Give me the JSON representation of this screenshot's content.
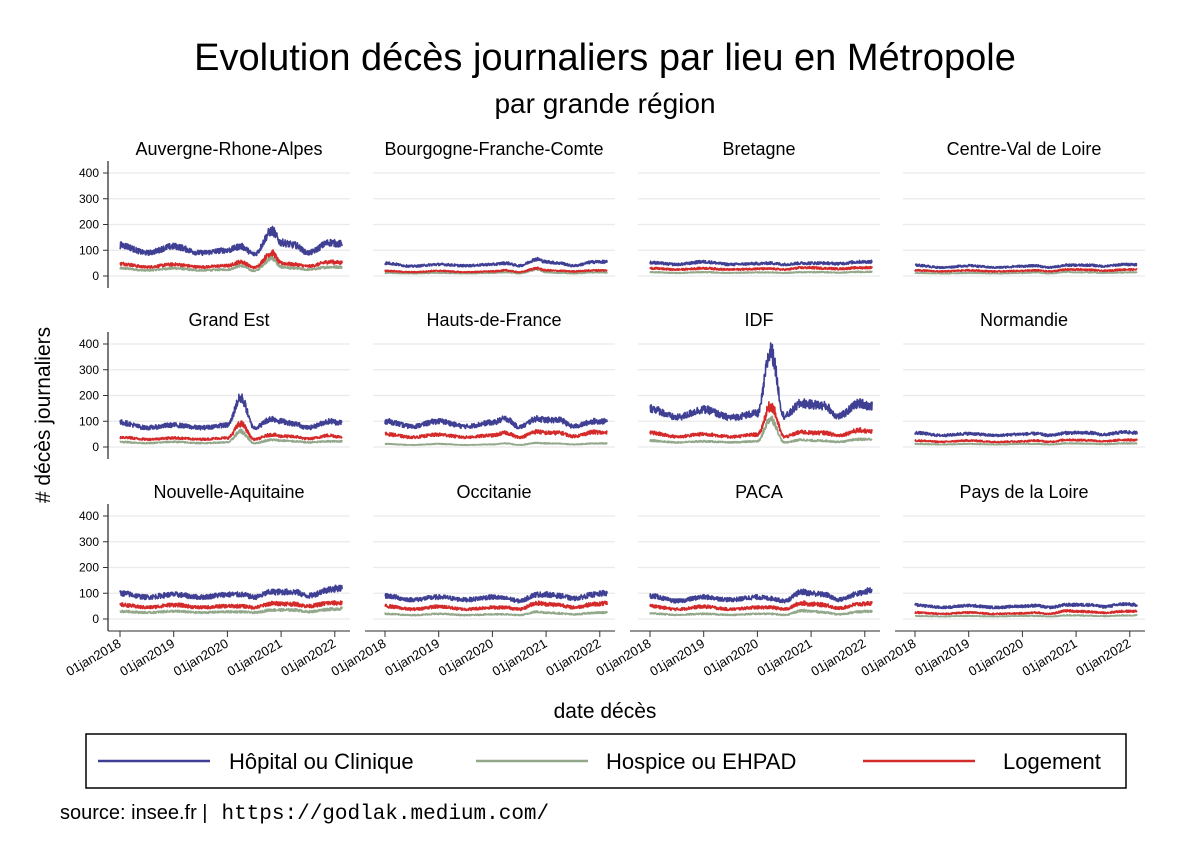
{
  "chart_data": {
    "type": "line",
    "title": "Evolution décès journaliers par lieu en Métropole",
    "subtitle": "par grande région",
    "xlabel": "date décès",
    "ylabel": "# décès journaliers",
    "ylim": [
      0,
      400
    ],
    "yticks": [
      0,
      100,
      200,
      300,
      400
    ],
    "xlim": [
      "2018-01-01",
      "2022-02-20"
    ],
    "xticks": [
      "01jan2018",
      "01jan2019",
      "01jan2020",
      "01jan2021",
      "01jan2022"
    ],
    "grid": true,
    "legend_position": "bottom",
    "series_info": [
      {
        "key": "hopital",
        "name": "Hôpital ou Clinique",
        "color": "#3f3f94"
      },
      {
        "key": "hospice",
        "name": "Hospice ou EHPAD",
        "color": "#93a88b"
      },
      {
        "key": "logement",
        "name": "Logement",
        "color": "#d52a2a"
      }
    ],
    "anchor_dates": [
      "2018-01",
      "2018-07",
      "2019-01",
      "2019-07",
      "2020-01",
      "2020-04",
      "2020-07",
      "2020-11",
      "2021-01",
      "2021-04",
      "2021-07",
      "2021-12",
      "2022-02"
    ],
    "panels": [
      {
        "region": "Auvergne-Rhone-Alpes",
        "series": {
          "hopital": [
            120,
            90,
            115,
            90,
            100,
            115,
            85,
            175,
            130,
            120,
            90,
            130,
            125
          ],
          "hospice": [
            30,
            22,
            30,
            22,
            25,
            40,
            20,
            70,
            35,
            30,
            25,
            35,
            35
          ],
          "logement": [
            48,
            35,
            45,
            35,
            40,
            55,
            33,
            90,
            50,
            45,
            38,
            55,
            52
          ]
        }
      },
      {
        "region": "Bourgogne-Franche-Comte",
        "series": {
          "hopital": [
            50,
            38,
            45,
            40,
            45,
            50,
            40,
            65,
            55,
            50,
            40,
            55,
            55
          ],
          "hospice": [
            12,
            10,
            12,
            10,
            12,
            15,
            10,
            25,
            15,
            12,
            10,
            14,
            14
          ],
          "logement": [
            20,
            15,
            20,
            15,
            18,
            22,
            15,
            30,
            22,
            20,
            18,
            22,
            22
          ]
        }
      },
      {
        "region": "Bretagne",
        "series": {
          "hopital": [
            52,
            45,
            55,
            45,
            48,
            50,
            45,
            50,
            50,
            50,
            48,
            55,
            55
          ],
          "hospice": [
            15,
            12,
            15,
            12,
            14,
            14,
            12,
            15,
            15,
            15,
            13,
            16,
            16
          ],
          "logement": [
            30,
            25,
            30,
            25,
            28,
            28,
            25,
            32,
            32,
            30,
            28,
            32,
            33
          ]
        }
      },
      {
        "region": "Centre-Val de Loire",
        "series": {
          "hopital": [
            42,
            33,
            40,
            33,
            38,
            40,
            33,
            42,
            42,
            42,
            38,
            45,
            45
          ],
          "hospice": [
            12,
            10,
            12,
            10,
            12,
            14,
            10,
            16,
            14,
            14,
            12,
            14,
            14
          ],
          "logement": [
            22,
            18,
            22,
            18,
            20,
            22,
            18,
            25,
            25,
            24,
            20,
            25,
            25
          ]
        }
      },
      {
        "region": "Grand Est",
        "series": {
          "hopital": [
            95,
            75,
            85,
            75,
            85,
            190,
            75,
            110,
            100,
            90,
            75,
            100,
            95
          ],
          "hospice": [
            20,
            15,
            20,
            15,
            18,
            60,
            15,
            28,
            25,
            22,
            18,
            22,
            22
          ],
          "logement": [
            38,
            30,
            35,
            30,
            35,
            90,
            30,
            48,
            42,
            40,
            32,
            45,
            40
          ]
        }
      },
      {
        "region": "Hauts-de-France",
        "series": {
          "hopital": [
            100,
            80,
            100,
            80,
            95,
            110,
            78,
            110,
            105,
            105,
            80,
            100,
            100
          ],
          "hospice": [
            12,
            8,
            12,
            8,
            10,
            14,
            8,
            16,
            14,
            13,
            10,
            14,
            14
          ],
          "logement": [
            50,
            38,
            48,
            38,
            45,
            55,
            38,
            60,
            55,
            55,
            42,
            58,
            55
          ]
        }
      },
      {
        "region": "IDF",
        "series": {
          "hopital": [
            150,
            115,
            145,
            115,
            130,
            370,
            120,
            170,
            165,
            160,
            120,
            170,
            160
          ],
          "hospice": [
            25,
            18,
            22,
            18,
            22,
            110,
            18,
            28,
            25,
            24,
            20,
            30,
            30
          ],
          "logement": [
            55,
            40,
            50,
            40,
            48,
            160,
            40,
            58,
            55,
            55,
            45,
            65,
            60
          ]
        }
      },
      {
        "region": "Normandie",
        "series": {
          "hopital": [
            55,
            45,
            52,
            45,
            50,
            52,
            45,
            55,
            55,
            55,
            48,
            58,
            55
          ],
          "hospice": [
            12,
            10,
            12,
            10,
            12,
            12,
            10,
            14,
            14,
            13,
            11,
            14,
            14
          ],
          "logement": [
            25,
            20,
            25,
            20,
            22,
            25,
            20,
            28,
            27,
            26,
            22,
            28,
            27
          ]
        }
      },
      {
        "region": "Nouvelle-Aquitaine",
        "series": {
          "hopital": [
            100,
            85,
            95,
            85,
            95,
            95,
            85,
            105,
            105,
            105,
            90,
            115,
            120
          ],
          "hospice": [
            30,
            25,
            30,
            25,
            28,
            28,
            25,
            35,
            35,
            35,
            28,
            38,
            40
          ],
          "logement": [
            55,
            45,
            55,
            45,
            50,
            50,
            45,
            60,
            60,
            58,
            50,
            62,
            62
          ]
        }
      },
      {
        "region": "Occitanie",
        "series": {
          "hopital": [
            90,
            75,
            85,
            75,
            85,
            80,
            70,
            95,
            95,
            90,
            80,
            95,
            100
          ],
          "hospice": [
            20,
            15,
            20,
            15,
            18,
            18,
            15,
            28,
            25,
            22,
            18,
            24,
            25
          ],
          "logement": [
            50,
            38,
            48,
            38,
            45,
            45,
            38,
            62,
            58,
            55,
            45,
            58,
            60
          ]
        }
      },
      {
        "region": "PACA",
        "series": {
          "hopital": [
            90,
            70,
            85,
            75,
            85,
            80,
            70,
            105,
            100,
            95,
            75,
            100,
            110
          ],
          "hospice": [
            22,
            16,
            20,
            16,
            20,
            20,
            16,
            32,
            30,
            26,
            18,
            28,
            30
          ],
          "logement": [
            50,
            38,
            48,
            38,
            45,
            45,
            38,
            62,
            58,
            55,
            42,
            58,
            60
          ]
        }
      },
      {
        "region": "Pays de la Loire",
        "series": {
          "hopital": [
            55,
            45,
            52,
            45,
            50,
            52,
            45,
            55,
            55,
            55,
            48,
            58,
            55
          ],
          "hospice": [
            12,
            10,
            12,
            10,
            12,
            12,
            10,
            14,
            14,
            13,
            11,
            14,
            14
          ],
          "logement": [
            25,
            20,
            25,
            20,
            22,
            25,
            20,
            32,
            30,
            28,
            24,
            30,
            30
          ]
        }
      }
    ]
  },
  "footer": {
    "source_label": "source: insee.fr |",
    "url": "https://godlak.medium.com/"
  }
}
